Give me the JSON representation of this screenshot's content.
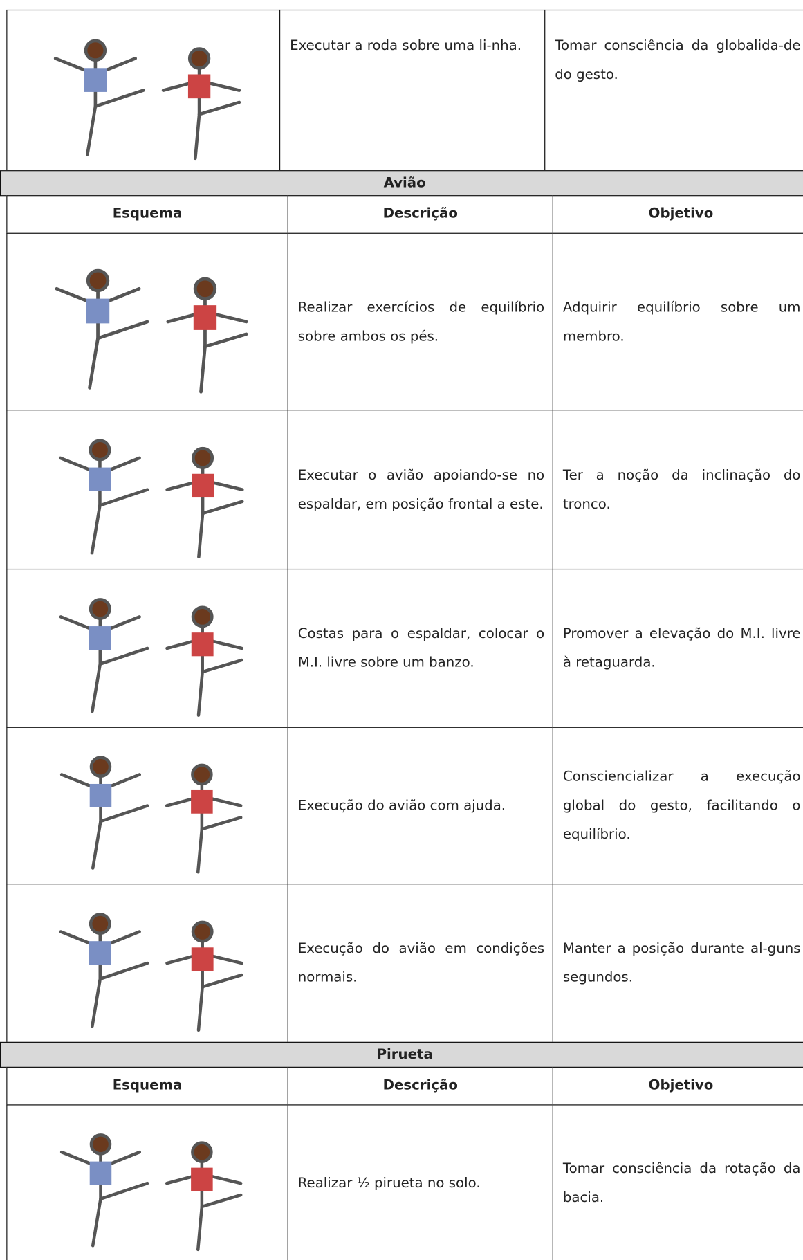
{
  "intro_row": {
    "description": "Executar a roda sobre uma li-nha.",
    "objective": "Tomar consciência da globalida-de do gesto."
  },
  "sections": [
    {
      "title": "Avião",
      "headers": [
        "Esquema",
        "Descrição",
        "Objetivo"
      ],
      "rows": [
        {
          "description": "Realizar exercícios de equilíbrio sobre ambos os pés.",
          "objective": "Adquirir equilíbrio sobre um membro."
        },
        {
          "description": "Executar o avião apoiando-se no espaldar, em posição frontal a este.",
          "objective": "Ter a noção da inclinação do tronco."
        },
        {
          "description": "Costas para o espaldar, colocar o M.I. livre sobre um banzo.",
          "objective": "Promover a elevação do M.I. livre à retaguarda."
        },
        {
          "description": "Execução do avião com ajuda.",
          "objective": "Consciencializar a execução global do gesto, facilitando o equilíbrio."
        },
        {
          "description": "Execução do avião em condições normais.",
          "objective": "Manter a posição durante al-guns segundos."
        }
      ]
    },
    {
      "title": "Pirueta",
      "headers": [
        "Esquema",
        "Descrição",
        "Objetivo"
      ],
      "rows": [
        {
          "description": "Realizar ½ pirueta no solo.",
          "objective": "Tomar consciência da rotação da bacia."
        }
      ]
    }
  ]
}
